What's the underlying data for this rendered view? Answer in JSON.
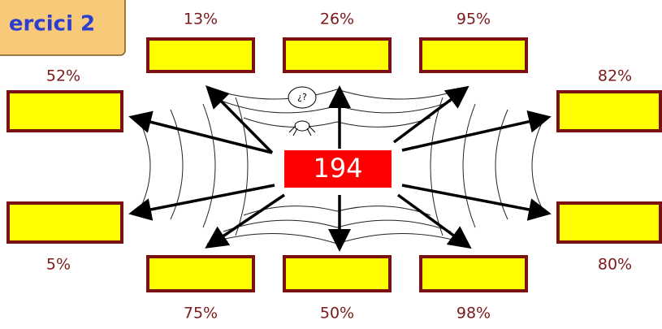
{
  "header": {
    "title": "ercici 2"
  },
  "center": "194",
  "boxes": [
    {
      "label": "13%"
    },
    {
      "label": "26%"
    },
    {
      "label": "95%"
    },
    {
      "label": "52%"
    },
    {
      "label": "82%"
    },
    {
      "label": "5%"
    },
    {
      "label": "80%"
    },
    {
      "label": "75%"
    },
    {
      "label": "50%"
    },
    {
      "label": "98%"
    }
  ]
}
